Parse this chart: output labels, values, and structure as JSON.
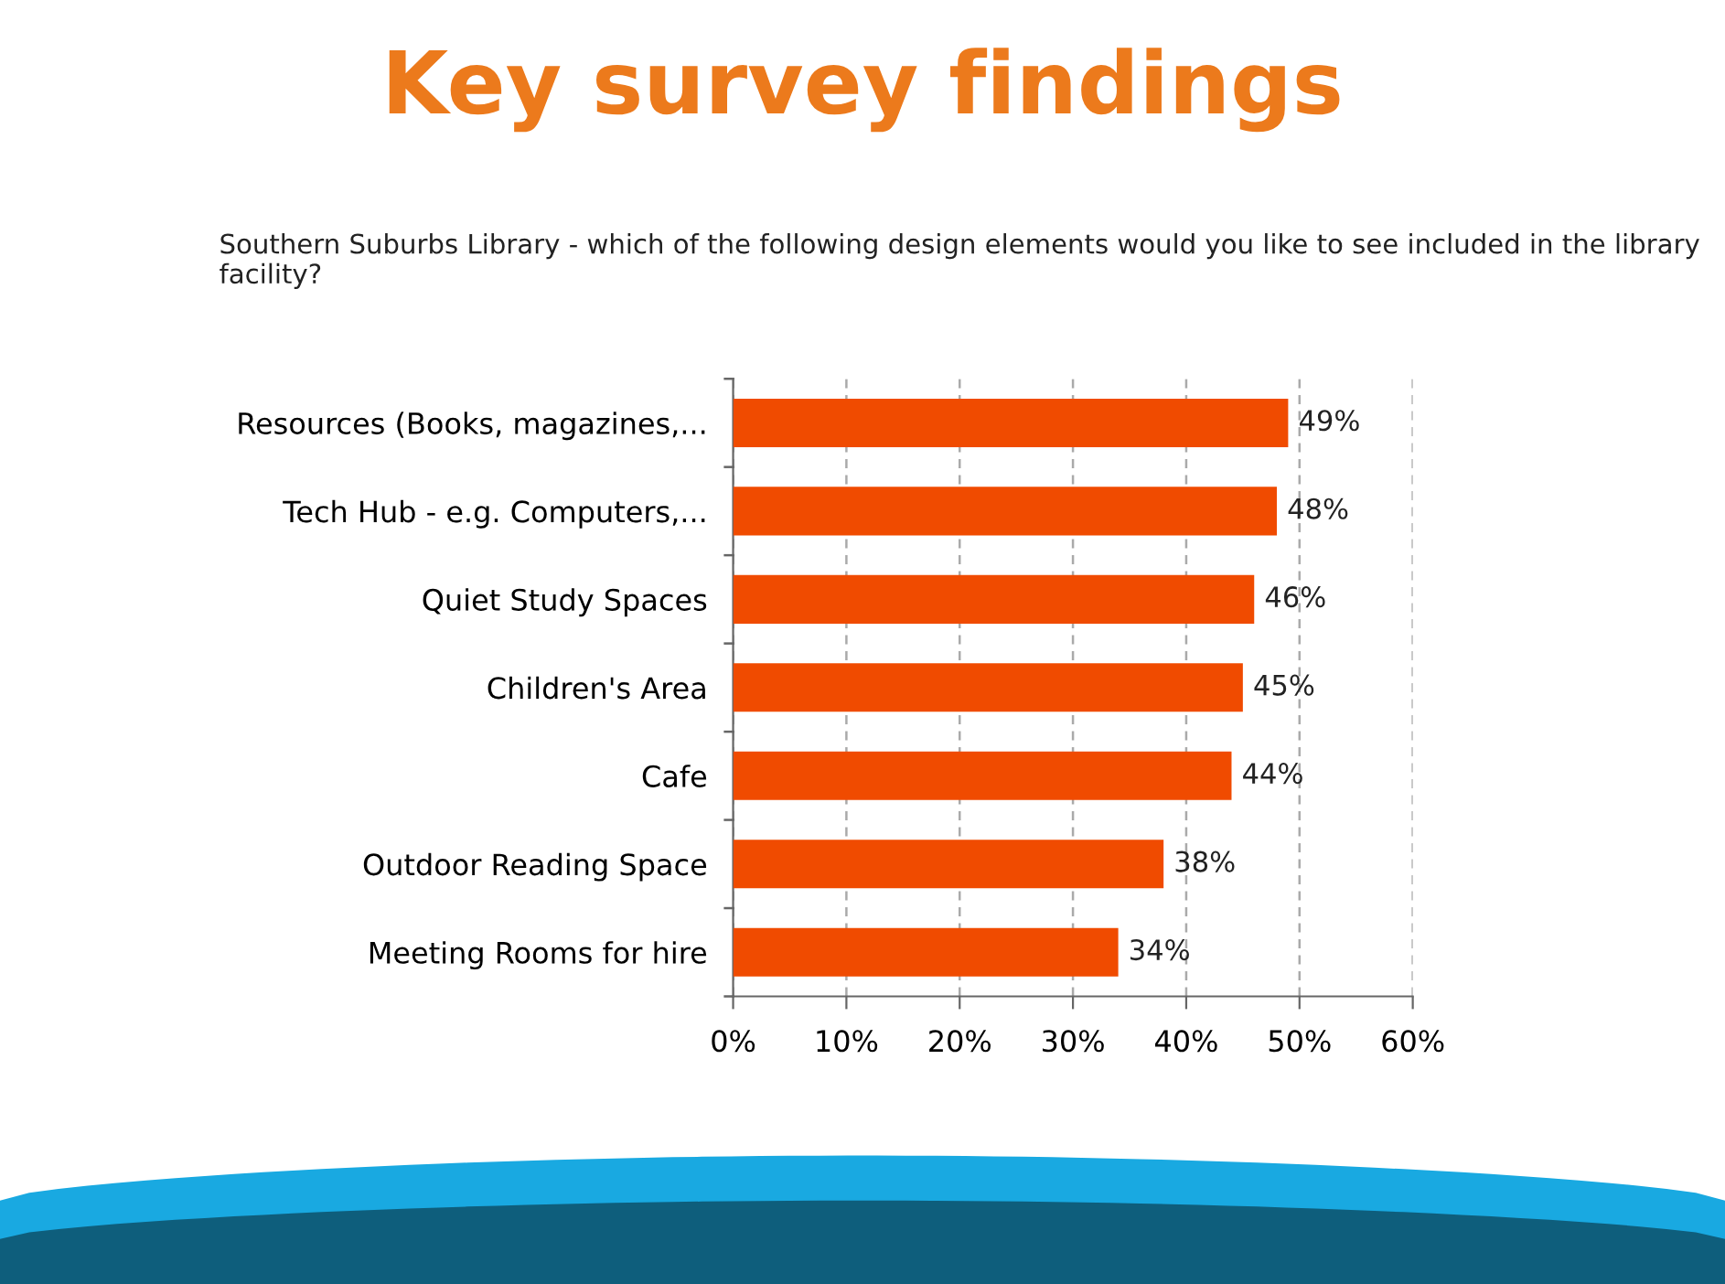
{
  "chart_data": {
    "type": "bar",
    "orientation": "horizontal",
    "title": "Key survey findings",
    "subtitle": "Southern Suburbs Library - which of the following design elements would you like to see included in the library facility?",
    "categories": [
      "Resources (Books, magazines,...",
      "Tech Hub - e.g. Computers,...",
      "Quiet Study Spaces",
      "Children's Area",
      "Cafe",
      "Outdoor Reading Space",
      "Meeting Rooms for hire"
    ],
    "values": [
      49,
      48,
      46,
      45,
      44,
      38,
      34
    ],
    "value_labels": [
      "49%",
      "48%",
      "46%",
      "45%",
      "44%",
      "38%",
      "34%"
    ],
    "color": "#f04b00",
    "xlim": [
      0,
      60
    ],
    "xticks": [
      {
        "value": 0,
        "label": "0%"
      },
      {
        "value": 10,
        "label": "10%"
      },
      {
        "value": 20,
        "label": "20%"
      },
      {
        "value": 30,
        "label": "30%"
      },
      {
        "value": 40,
        "label": "40%"
      },
      {
        "value": 50,
        "label": "50%"
      },
      {
        "value": 60,
        "label": "60%"
      }
    ],
    "grid": "x",
    "legend": false
  }
}
